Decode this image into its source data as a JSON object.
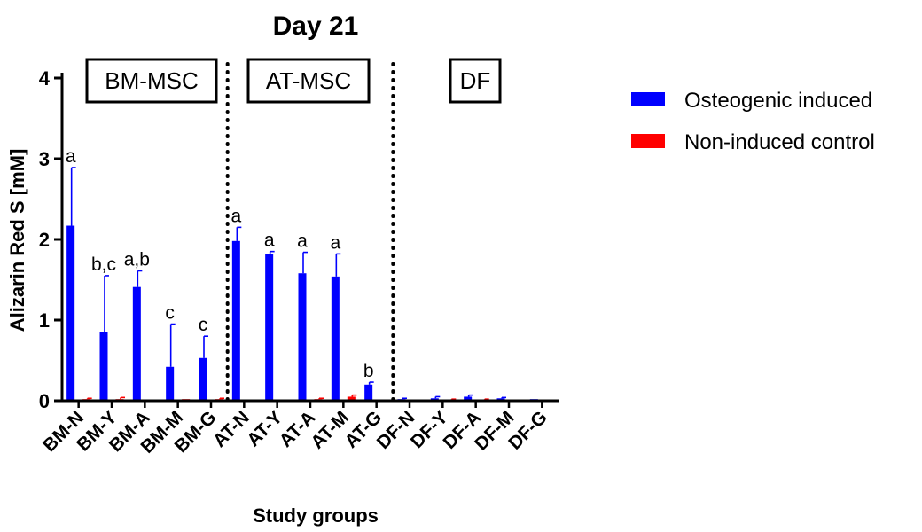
{
  "chart_data": {
    "type": "bar",
    "title": "Day 21",
    "xlabel": "Study groups",
    "ylabel": "Alizarin Red S [mM]",
    "ylim": [
      0,
      4
    ],
    "yticks": [
      0,
      1,
      2,
      3,
      4
    ],
    "categories": [
      "BM-N",
      "BM-Y",
      "BM-A",
      "BM-M",
      "BM-G",
      "AT-N",
      "AT-Y",
      "AT-A",
      "AT-M",
      "AT-G",
      "DF-N",
      "DF-Y",
      "DF-A",
      "DF-M",
      "DF-G"
    ],
    "series": [
      {
        "name": "Osteogenic induced",
        "color": "#0000ff",
        "values": [
          2.17,
          0.85,
          1.41,
          0.42,
          0.53,
          1.98,
          1.82,
          1.58,
          1.54,
          0.2,
          0.02,
          0.03,
          0.05,
          0.03,
          0.02
        ],
        "errors": [
          0.72,
          0.7,
          0.2,
          0.53,
          0.27,
          0.17,
          0.03,
          0.26,
          0.28,
          0.03,
          0.01,
          0.02,
          0.02,
          0.01,
          0.0
        ]
      },
      {
        "name": "Non-induced control",
        "color": "#ff0000",
        "values": [
          0.02,
          0.02,
          0.01,
          0.02,
          0.02,
          0.01,
          0.01,
          0.02,
          0.05,
          0.01,
          0.01,
          0.01,
          0.01,
          0.0,
          0.0
        ],
        "errors": [
          0.01,
          0.02,
          0.0,
          0.0,
          0.01,
          0.0,
          0.0,
          0.01,
          0.02,
          0.0,
          0.0,
          0.01,
          0.01,
          0.0,
          0.0
        ]
      }
    ],
    "significance_labels": [
      "a",
      "b,c",
      "a,b",
      "c",
      "c",
      "a",
      "a",
      "a",
      "a",
      "b",
      "",
      "",
      "",
      "",
      ""
    ],
    "groups": [
      {
        "label": "BM-MSC"
      },
      {
        "label": "AT-MSC"
      },
      {
        "label": "DF"
      }
    ],
    "legend_position": "right"
  }
}
